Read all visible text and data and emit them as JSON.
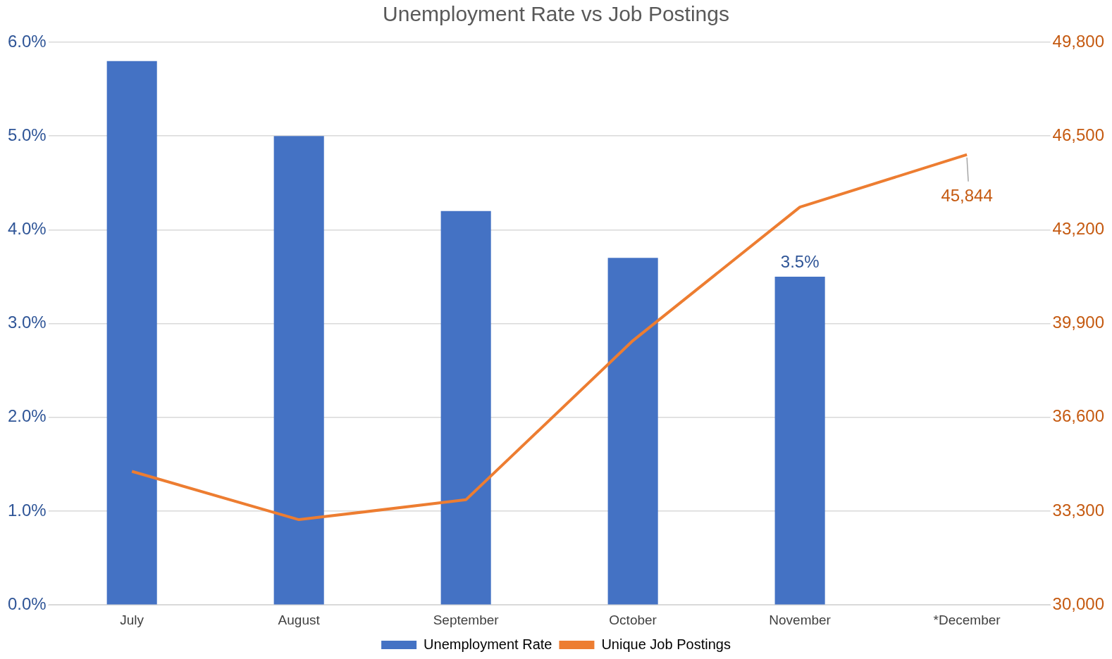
{
  "chart_data": {
    "type": "bar",
    "title": "Unemployment Rate vs Job Postings",
    "categories": [
      "July",
      "August",
      "September",
      "October",
      "November",
      "*December"
    ],
    "series": [
      {
        "name": "Unemployment Rate",
        "color": "#4472c4",
        "values": [
          5.8,
          5.0,
          4.2,
          3.7,
          3.5,
          null
        ],
        "value_labels": [
          null,
          null,
          null,
          null,
          "3.5%",
          null
        ]
      },
      {
        "name": "Unique Job Postings",
        "type": "line",
        "axis": "y2",
        "color": "#ed7d31",
        "values": [
          34700,
          33000,
          33700,
          39300,
          44000,
          45844
        ],
        "value_labels": [
          null,
          null,
          null,
          null,
          null,
          "45,844"
        ]
      }
    ],
    "ylim": [
      0,
      6
    ],
    "yticks": [
      {
        "value": 0,
        "label": "0.0%"
      },
      {
        "value": 1,
        "label": "1.0%"
      },
      {
        "value": 2,
        "label": "2.0%"
      },
      {
        "value": 3,
        "label": "3.0%"
      },
      {
        "value": 4,
        "label": "4.0%"
      },
      {
        "value": 5,
        "label": "5.0%"
      },
      {
        "value": 6,
        "label": "6.0%"
      }
    ],
    "y2lim": [
      30000,
      49800
    ],
    "y2ticks": [
      {
        "value": 30000,
        "label": "30,000"
      },
      {
        "value": 33300,
        "label": "33,300"
      },
      {
        "value": 36600,
        "label": "36,600"
      },
      {
        "value": 39900,
        "label": "39,900"
      },
      {
        "value": 43200,
        "label": "43,200"
      },
      {
        "value": 46500,
        "label": "46,500"
      },
      {
        "value": 49800,
        "label": "49,800"
      }
    ],
    "grid": "y",
    "legend": "bottom",
    "marker": "none",
    "line_style": "solid"
  }
}
